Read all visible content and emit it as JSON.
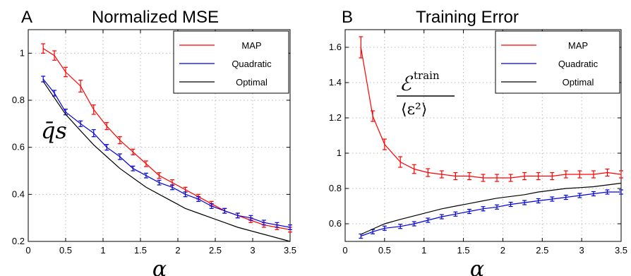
{
  "chart_data": [
    {
      "type": "line",
      "panel_label": "A",
      "title": "Normalized MSE",
      "xlabel": "α",
      "ylabel": "",
      "annotation": "q̄s",
      "xlim": [
        0,
        3.5
      ],
      "ylim": [
        0.2,
        1.1
      ],
      "xticks": [
        0,
        0.5,
        1,
        1.5,
        2,
        2.5,
        3,
        3.5
      ],
      "yticks": [
        0.2,
        0.4,
        0.6,
        0.8,
        1
      ],
      "grid": true,
      "legend_position": "top-right",
      "series": [
        {
          "name": "MAP",
          "color": "#ff0000",
          "errorbars": true,
          "x": [
            0.2,
            0.35,
            0.5,
            0.7,
            0.875,
            1.05,
            1.225,
            1.4,
            1.575,
            1.75,
            1.925,
            2.1,
            2.275,
            2.45,
            2.625,
            2.8,
            2.975,
            3.15,
            3.325,
            3.5
          ],
          "y": [
            1.02,
            0.99,
            0.92,
            0.86,
            0.76,
            0.69,
            0.63,
            0.58,
            0.53,
            0.48,
            0.45,
            0.42,
            0.39,
            0.36,
            0.33,
            0.31,
            0.29,
            0.27,
            0.26,
            0.25
          ],
          "err": [
            0.02,
            0.02,
            0.02,
            0.025,
            0.02,
            0.015,
            0.015,
            0.012,
            0.012,
            0.012,
            0.012,
            0.01,
            0.01,
            0.01,
            0.01,
            0.01,
            0.01,
            0.01,
            0.01,
            0.01
          ]
        },
        {
          "name": "Quadratic",
          "color": "#0000dd",
          "errorbars": true,
          "x": [
            0.2,
            0.35,
            0.5,
            0.7,
            0.875,
            1.05,
            1.225,
            1.4,
            1.575,
            1.75,
            1.925,
            2.1,
            2.275,
            2.45,
            2.625,
            2.8,
            2.975,
            3.15,
            3.325,
            3.5
          ],
          "y": [
            0.89,
            0.83,
            0.75,
            0.7,
            0.66,
            0.6,
            0.56,
            0.51,
            0.48,
            0.45,
            0.43,
            0.4,
            0.38,
            0.35,
            0.33,
            0.31,
            0.3,
            0.28,
            0.27,
            0.26
          ],
          "err": [
            0.012,
            0.012,
            0.012,
            0.012,
            0.015,
            0.012,
            0.012,
            0.01,
            0.01,
            0.01,
            0.01,
            0.01,
            0.01,
            0.01,
            0.01,
            0.01,
            0.01,
            0.01,
            0.01,
            0.01
          ]
        },
        {
          "name": "Optimal",
          "color": "#000000",
          "errorbars": false,
          "x": [
            0.2,
            0.35,
            0.5,
            0.7,
            0.875,
            1.05,
            1.225,
            1.4,
            1.575,
            1.75,
            1.925,
            2.1,
            2.275,
            2.45,
            2.625,
            2.8,
            2.975,
            3.15,
            3.325,
            3.5
          ],
          "y": [
            0.88,
            0.81,
            0.74,
            0.67,
            0.61,
            0.56,
            0.51,
            0.47,
            0.43,
            0.4,
            0.37,
            0.34,
            0.32,
            0.3,
            0.28,
            0.26,
            0.245,
            0.23,
            0.215,
            0.2
          ]
        }
      ]
    },
    {
      "type": "line",
      "panel_label": "B",
      "title": "Training Error",
      "xlabel": "α",
      "ylabel": "",
      "annotation": {
        "numerator": "ℰ",
        "superscript": "train",
        "denominator": "⟨ε²⟩"
      },
      "xlim": [
        0,
        3.5
      ],
      "ylim": [
        0.5,
        1.7
      ],
      "xticks": [
        0,
        0.5,
        1,
        1.5,
        2,
        2.5,
        3,
        3.5
      ],
      "yticks": [
        0.6,
        0.8,
        1,
        1.2,
        1.4,
        1.6
      ],
      "grid": true,
      "legend_position": "top-right",
      "series": [
        {
          "name": "MAP",
          "color": "#ff0000",
          "errorbars": true,
          "x": [
            0.2,
            0.35,
            0.5,
            0.7,
            0.875,
            1.05,
            1.225,
            1.4,
            1.575,
            1.75,
            1.925,
            2.1,
            2.275,
            2.45,
            2.625,
            2.8,
            2.975,
            3.15,
            3.325,
            3.5
          ],
          "y": [
            1.6,
            1.21,
            1.05,
            0.95,
            0.91,
            0.89,
            0.88,
            0.87,
            0.87,
            0.86,
            0.86,
            0.86,
            0.87,
            0.87,
            0.87,
            0.88,
            0.88,
            0.88,
            0.89,
            0.88
          ],
          "err": [
            0.06,
            0.03,
            0.03,
            0.03,
            0.025,
            0.022,
            0.02,
            0.02,
            0.02,
            0.02,
            0.02,
            0.02,
            0.02,
            0.02,
            0.02,
            0.02,
            0.02,
            0.02,
            0.02,
            0.02
          ]
        },
        {
          "name": "Quadratic",
          "color": "#0000dd",
          "errorbars": true,
          "x": [
            0.2,
            0.35,
            0.5,
            0.7,
            0.875,
            1.05,
            1.225,
            1.4,
            1.575,
            1.75,
            1.925,
            2.1,
            2.275,
            2.45,
            2.625,
            2.8,
            2.975,
            3.15,
            3.325,
            3.5
          ],
          "y": [
            0.53,
            0.555,
            0.575,
            0.585,
            0.6,
            0.62,
            0.64,
            0.655,
            0.67,
            0.685,
            0.695,
            0.71,
            0.72,
            0.73,
            0.74,
            0.75,
            0.76,
            0.77,
            0.78,
            0.78
          ],
          "err": [
            0.012,
            0.012,
            0.012,
            0.012,
            0.012,
            0.012,
            0.012,
            0.012,
            0.012,
            0.012,
            0.012,
            0.012,
            0.012,
            0.012,
            0.012,
            0.012,
            0.012,
            0.012,
            0.012,
            0.012
          ]
        },
        {
          "name": "Optimal",
          "color": "#000000",
          "errorbars": false,
          "x": [
            0.2,
            0.35,
            0.5,
            0.7,
            0.875,
            1.05,
            1.225,
            1.4,
            1.575,
            1.75,
            1.925,
            2.1,
            2.275,
            2.45,
            2.625,
            2.8,
            2.975,
            3.15,
            3.325,
            3.5
          ],
          "y": [
            0.54,
            0.57,
            0.6,
            0.625,
            0.645,
            0.665,
            0.685,
            0.7,
            0.715,
            0.73,
            0.745,
            0.755,
            0.765,
            0.78,
            0.79,
            0.8,
            0.805,
            0.81,
            0.82,
            0.83
          ]
        }
      ]
    }
  ]
}
